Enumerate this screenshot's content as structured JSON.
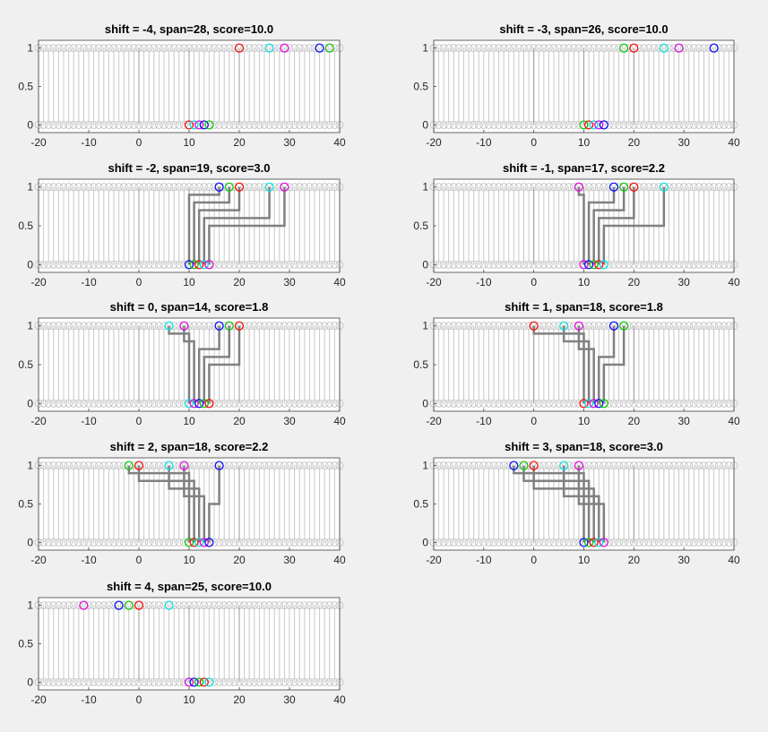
{
  "colors": {
    "background": "#f0f0f0",
    "axes": "#ffffff",
    "grid_stem": "#c8c8c8",
    "connector": "#808080",
    "axis_line": "#404040",
    "red": "#ff0000",
    "green": "#00cc00",
    "blue": "#0000ff",
    "cyan": "#00e5e5",
    "magenta": "#e000e0"
  },
  "chart_data": [
    {
      "type": "scatter",
      "title": "shift = -4,  span=28,  score=10.0",
      "xlim": [
        -20,
        40
      ],
      "ylim": [
        -0.1,
        1.1
      ],
      "xticks": [
        -20,
        -10,
        0,
        10,
        20,
        30,
        40
      ],
      "xtick_labels": [
        "-20",
        "-10",
        "0",
        "10",
        "20",
        "30",
        "40"
      ],
      "yticks": [
        0,
        0.5,
        1
      ],
      "ytick_labels": [
        "0",
        "0.5",
        "1"
      ],
      "series": [
        {
          "color": "red",
          "top": 20,
          "bottom": 10
        },
        {
          "color": "cyan",
          "top": 26,
          "bottom": 11
        },
        {
          "color": "magenta",
          "top": 29,
          "bottom": 12
        },
        {
          "color": "blue",
          "top": 36,
          "bottom": 13
        },
        {
          "color": "green",
          "top": 38,
          "bottom": 14
        }
      ],
      "connectors": false
    },
    {
      "type": "scatter",
      "title": "shift = -3,  span=26,  score=10.0",
      "xlim": [
        -20,
        40
      ],
      "ylim": [
        -0.1,
        1.1
      ],
      "xticks": [
        -20,
        -10,
        0,
        10,
        20,
        30,
        40
      ],
      "xtick_labels": [
        "-20",
        "-10",
        "0",
        "10",
        "20",
        "30",
        "40"
      ],
      "yticks": [
        0,
        0.5,
        1
      ],
      "ytick_labels": [
        "0",
        "0.5",
        "1"
      ],
      "series": [
        {
          "color": "green",
          "top": 18,
          "bottom": 10
        },
        {
          "color": "red",
          "top": 20,
          "bottom": 11
        },
        {
          "color": "cyan",
          "top": 26,
          "bottom": 12
        },
        {
          "color": "magenta",
          "top": 29,
          "bottom": 13
        },
        {
          "color": "blue",
          "top": 36,
          "bottom": 14
        }
      ],
      "connectors": false
    },
    {
      "type": "scatter",
      "title": "shift = -2,  span=19,  score=3.0",
      "xlim": [
        -20,
        40
      ],
      "ylim": [
        -0.1,
        1.1
      ],
      "xticks": [
        -20,
        -10,
        0,
        10,
        20,
        30,
        40
      ],
      "xtick_labels": [
        "-20",
        "-10",
        "0",
        "10",
        "20",
        "30",
        "40"
      ],
      "yticks": [
        0,
        0.5,
        1
      ],
      "ytick_labels": [
        "0",
        "0.5",
        "1"
      ],
      "series": [
        {
          "color": "blue",
          "top": 16,
          "bottom": 10
        },
        {
          "color": "green",
          "top": 18,
          "bottom": 11
        },
        {
          "color": "red",
          "top": 20,
          "bottom": 12
        },
        {
          "color": "cyan",
          "top": 26,
          "bottom": 13
        },
        {
          "color": "magenta",
          "top": 29,
          "bottom": 14
        }
      ],
      "connectors": true
    },
    {
      "type": "scatter",
      "title": "shift = -1,  span=17,  score=2.2",
      "xlim": [
        -20,
        40
      ],
      "ylim": [
        -0.1,
        1.1
      ],
      "xticks": [
        -20,
        -10,
        0,
        10,
        20,
        30,
        40
      ],
      "xtick_labels": [
        "-20",
        "-10",
        "0",
        "10",
        "20",
        "30",
        "40"
      ],
      "yticks": [
        0,
        0.5,
        1
      ],
      "ytick_labels": [
        "0",
        "0.5",
        "1"
      ],
      "series": [
        {
          "color": "magenta",
          "top": 9,
          "bottom": 10
        },
        {
          "color": "blue",
          "top": 16,
          "bottom": 11
        },
        {
          "color": "green",
          "top": 18,
          "bottom": 12
        },
        {
          "color": "red",
          "top": 20,
          "bottom": 13
        },
        {
          "color": "cyan",
          "top": 26,
          "bottom": 14
        }
      ],
      "connectors": true
    },
    {
      "type": "scatter",
      "title": "shift = 0,  span=14,  score=1.8",
      "xlim": [
        -20,
        40
      ],
      "ylim": [
        -0.1,
        1.1
      ],
      "xticks": [
        -20,
        -10,
        0,
        10,
        20,
        30,
        40
      ],
      "xtick_labels": [
        "-20",
        "-10",
        "0",
        "10",
        "20",
        "30",
        "40"
      ],
      "yticks": [
        0,
        0.5,
        1
      ],
      "ytick_labels": [
        "0",
        "0.5",
        "1"
      ],
      "series": [
        {
          "color": "cyan",
          "top": 6,
          "bottom": 10
        },
        {
          "color": "magenta",
          "top": 9,
          "bottom": 11
        },
        {
          "color": "blue",
          "top": 16,
          "bottom": 12
        },
        {
          "color": "green",
          "top": 18,
          "bottom": 13
        },
        {
          "color": "red",
          "top": 20,
          "bottom": 14
        }
      ],
      "connectors": true
    },
    {
      "type": "scatter",
      "title": "shift = 1,  span=18,  score=1.8",
      "xlim": [
        -20,
        40
      ],
      "ylim": [
        -0.1,
        1.1
      ],
      "xticks": [
        -20,
        -10,
        0,
        10,
        20,
        30,
        40
      ],
      "xtick_labels": [
        "-20",
        "-10",
        "0",
        "10",
        "20",
        "30",
        "40"
      ],
      "yticks": [
        0,
        0.5,
        1
      ],
      "ytick_labels": [
        "0",
        "0.5",
        "1"
      ],
      "series": [
        {
          "color": "red",
          "top": 0,
          "bottom": 10
        },
        {
          "color": "cyan",
          "top": 6,
          "bottom": 11
        },
        {
          "color": "magenta",
          "top": 9,
          "bottom": 12
        },
        {
          "color": "blue",
          "top": 16,
          "bottom": 13
        },
        {
          "color": "green",
          "top": 18,
          "bottom": 14
        }
      ],
      "connectors": true
    },
    {
      "type": "scatter",
      "title": "shift = 2,  span=18,  score=2.2",
      "xlim": [
        -20,
        40
      ],
      "ylim": [
        -0.1,
        1.1
      ],
      "xticks": [
        -20,
        -10,
        0,
        10,
        20,
        30,
        40
      ],
      "xtick_labels": [
        "-20",
        "-10",
        "0",
        "10",
        "20",
        "30",
        "40"
      ],
      "yticks": [
        0,
        0.5,
        1
      ],
      "ytick_labels": [
        "0",
        "0.5",
        "1"
      ],
      "series": [
        {
          "color": "green",
          "top": -2,
          "bottom": 10
        },
        {
          "color": "red",
          "top": 0,
          "bottom": 11
        },
        {
          "color": "cyan",
          "top": 6,
          "bottom": 12
        },
        {
          "color": "magenta",
          "top": 9,
          "bottom": 13
        },
        {
          "color": "blue",
          "top": 16,
          "bottom": 14
        }
      ],
      "connectors": true
    },
    {
      "type": "scatter",
      "title": "shift = 3,  span=18,  score=3.0",
      "xlim": [
        -20,
        40
      ],
      "ylim": [
        -0.1,
        1.1
      ],
      "xticks": [
        -20,
        -10,
        0,
        10,
        20,
        30,
        40
      ],
      "xtick_labels": [
        "-20",
        "-10",
        "0",
        "10",
        "20",
        "30",
        "40"
      ],
      "yticks": [
        0,
        0.5,
        1
      ],
      "ytick_labels": [
        "0",
        "0.5",
        "1"
      ],
      "series": [
        {
          "color": "blue",
          "top": -4,
          "bottom": 10
        },
        {
          "color": "green",
          "top": -2,
          "bottom": 11
        },
        {
          "color": "red",
          "top": 0,
          "bottom": 12
        },
        {
          "color": "cyan",
          "top": 6,
          "bottom": 13
        },
        {
          "color": "magenta",
          "top": 9,
          "bottom": 14
        }
      ],
      "connectors": true
    },
    {
      "type": "scatter",
      "title": "shift = 4,  span=25,  score=10.0",
      "xlim": [
        -20,
        40
      ],
      "ylim": [
        -0.1,
        1.1
      ],
      "xticks": [
        -20,
        -10,
        0,
        10,
        20,
        30,
        40
      ],
      "xtick_labels": [
        "-20",
        "-10",
        "0",
        "10",
        "20",
        "30",
        "40"
      ],
      "yticks": [
        0,
        0.5,
        1
      ],
      "ytick_labels": [
        "0",
        "0.5",
        "1"
      ],
      "series": [
        {
          "color": "magenta",
          "top": -11,
          "bottom": 10
        },
        {
          "color": "blue",
          "top": -4,
          "bottom": 11
        },
        {
          "color": "green",
          "top": -2,
          "bottom": 12
        },
        {
          "color": "red",
          "top": 0,
          "bottom": 13
        },
        {
          "color": "cyan",
          "top": 6,
          "bottom": 14
        }
      ],
      "connectors": false
    }
  ]
}
